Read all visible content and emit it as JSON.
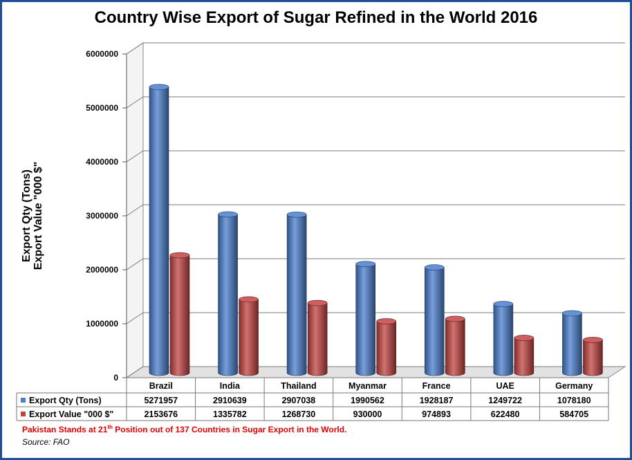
{
  "chart_data": {
    "type": "bar",
    "title": "Country Wise Export of Sugar Refined in the World 2016",
    "ylabel_lines": [
      "Export Qty (Tons)",
      "Export Value \"000 $\""
    ],
    "ylim": [
      0,
      6000000
    ],
    "yticks": [
      "0",
      "1000000",
      "2000000",
      "3000000",
      "4000000",
      "5000000",
      "6000000"
    ],
    "categories": [
      "Brazil",
      "India",
      "Thailand",
      "Myanmar",
      "France",
      "UAE",
      "Germany"
    ],
    "series": [
      {
        "name": "Export Qty (Tons)",
        "color": "#4a7fcf",
        "values": [
          5271957,
          2910639,
          2907038,
          1990562,
          1928187,
          1249722,
          1078180
        ]
      },
      {
        "name": "Export Value \"000 $\"",
        "color": "#c44341",
        "values": [
          2153676,
          1335782,
          1268730,
          930000,
          974893,
          622480,
          584705
        ]
      }
    ],
    "grid": true,
    "data_table": true,
    "legend_placement": "data-table-rows"
  },
  "footnote": {
    "before": "Pakistan Stands at 21",
    "sup": "th",
    "after": " Position out of 137 Countries in Sugar Export in the World."
  },
  "source": "Source: FAO"
}
